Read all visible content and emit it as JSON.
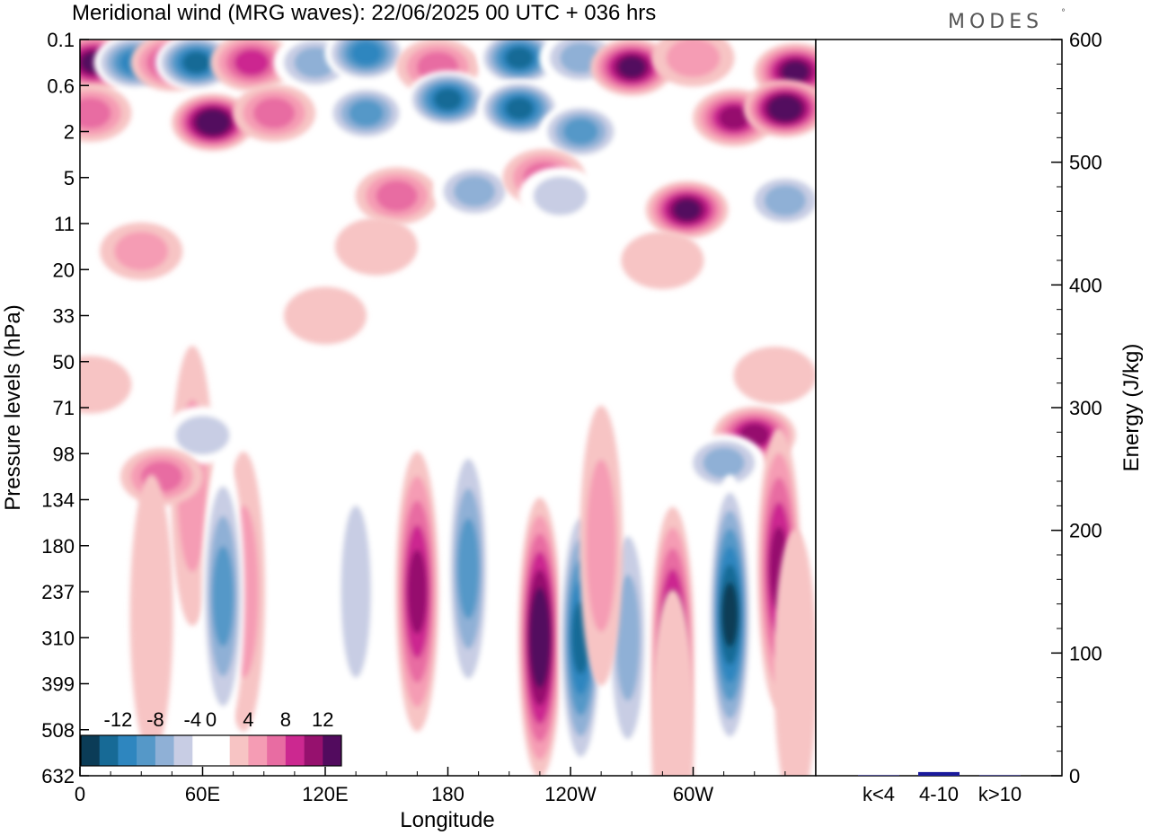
{
  "title": "Meridional wind (MRG waves):  22/06/2025  00 UTC  + 036 hrs",
  "brand": "MODES",
  "brand_mark": "°",
  "colors": {
    "contour_levels": [
      -14,
      -12,
      -10,
      -8,
      -6,
      -4,
      -2,
      2,
      4,
      6,
      8,
      10,
      12,
      14
    ],
    "palette": [
      "#0b3c57",
      "#176a96",
      "#2e86bf",
      "#5598c8",
      "#8fb0d6",
      "#c8cde4",
      "#ffffff",
      "#ffffff",
      "#f7c4c4",
      "#f59cb4",
      "#e86ca2",
      "#cc2890",
      "#96116e",
      "#520b5e"
    ],
    "energy_bar": "#1a1a9c"
  },
  "chart_data": [
    {
      "type": "heatmap",
      "title": "Meridional wind (MRG waves):  22/06/2025  00 UTC  + 036 hrs",
      "xlabel": "Longitude",
      "ylabel": "Pressure levels (hPa)",
      "x_ticks": [
        "0",
        "60E",
        "120E",
        "180",
        "120W",
        "60W"
      ],
      "x_tick_values": [
        0,
        60,
        120,
        180,
        240,
        300
      ],
      "xlim": [
        0,
        360
      ],
      "y_ticks": [
        "0.1",
        "0.6",
        "2",
        "5",
        "11",
        "20",
        "33",
        "50",
        "71",
        "98",
        "134",
        "180",
        "237",
        "310",
        "399",
        "508",
        "632"
      ],
      "colorbar_labels": [
        "-12",
        "-8",
        "-4",
        "0",
        "4",
        "8",
        "12"
      ],
      "colorbar_label_values": [
        -12,
        -8,
        -4,
        0,
        4,
        8,
        12
      ],
      "features": [
        {
          "lon": 7,
          "level": 0.5,
          "value": 12
        },
        {
          "lon": 27,
          "level": 0.5,
          "value": -11
        },
        {
          "lon": 45,
          "level": 0.5,
          "value": 8
        },
        {
          "lon": 57,
          "level": 0.5,
          "value": -12
        },
        {
          "lon": 84,
          "level": 0.5,
          "value": 9
        },
        {
          "lon": 115,
          "level": 0.5,
          "value": -7
        },
        {
          "lon": 140,
          "level": 0.3,
          "value": -10
        },
        {
          "lon": 175,
          "level": 0.6,
          "value": 7
        },
        {
          "lon": 215,
          "level": 0.4,
          "value": -13
        },
        {
          "lon": 245,
          "level": 0.4,
          "value": -6
        },
        {
          "lon": 270,
          "level": 0.6,
          "value": 13
        },
        {
          "lon": 300,
          "level": 0.4,
          "value": 4
        },
        {
          "lon": 350,
          "level": 0.7,
          "value": 13
        },
        {
          "lon": 5,
          "level": 1.6,
          "value": 7
        },
        {
          "lon": 65,
          "level": 1.8,
          "value": 14
        },
        {
          "lon": 95,
          "level": 1.6,
          "value": 6
        },
        {
          "lon": 140,
          "level": 1.6,
          "value": -9
        },
        {
          "lon": 180,
          "level": 1.3,
          "value": -13
        },
        {
          "lon": 215,
          "level": 1.5,
          "value": -13
        },
        {
          "lon": 245,
          "level": 2.0,
          "value": -9
        },
        {
          "lon": 320,
          "level": 1.7,
          "value": 11
        },
        {
          "lon": 345,
          "level": 1.5,
          "value": 14
        },
        {
          "lon": 155,
          "level": 3.4,
          "value": 6
        },
        {
          "lon": 193,
          "level": 3.3,
          "value": -6
        },
        {
          "lon": 227,
          "level": 3.0,
          "value": 7
        },
        {
          "lon": 235,
          "level": 3.4,
          "value": -5
        },
        {
          "lon": 297,
          "level": 3.7,
          "value": 13
        },
        {
          "lon": 345,
          "level": 3.5,
          "value": -6
        },
        {
          "lon": 5,
          "level": 4.3,
          "value": -3
        },
        {
          "lon": 30,
          "level": 4.6,
          "value": 5
        },
        {
          "lon": 145,
          "level": 4.5,
          "value": 2
        },
        {
          "lon": 285,
          "level": 4.8,
          "value": 3
        },
        {
          "lon": 120,
          "level": 6.0,
          "value": 3
        },
        {
          "lon": 60,
          "level": 5.9,
          "value": -3
        },
        {
          "lon": 75,
          "level": 8.1,
          "value": -3
        },
        {
          "lon": 5,
          "level": 7.5,
          "value": 3
        },
        {
          "lon": 265,
          "level": 7.8,
          "value": -3
        },
        {
          "lon": 340,
          "level": 7.3,
          "value": 3
        },
        {
          "lon": 55,
          "level": 9.7,
          "value": 5
        },
        {
          "lon": 60,
          "level": 8.6,
          "value": -5
        },
        {
          "lon": 330,
          "level": 8.6,
          "value": 11
        },
        {
          "lon": 315,
          "level": 9.2,
          "value": -6
        },
        {
          "lon": 40,
          "level": 9.5,
          "value": 7
        },
        {
          "lon": 80,
          "level": 12.0,
          "value": 4
        },
        {
          "lon": 70,
          "level": 12.1,
          "value": -8
        },
        {
          "lon": 135,
          "level": 12.0,
          "value": -5
        },
        {
          "lon": 165,
          "level": 12.0,
          "value": 10
        },
        {
          "lon": 190,
          "level": 11.5,
          "value": -8
        },
        {
          "lon": 225,
          "level": 13.0,
          "value": 14
        },
        {
          "lon": 245,
          "level": 13.0,
          "value": -12
        },
        {
          "lon": 268,
          "level": 13.0,
          "value": -6
        },
        {
          "lon": 290,
          "level": 13.2,
          "value": 12
        },
        {
          "lon": 318,
          "level": 12.5,
          "value": -14
        },
        {
          "lon": 342,
          "level": 11.5,
          "value": 11
        },
        {
          "lon": 350,
          "level": 13.7,
          "value": 3
        },
        {
          "lon": 35,
          "level": 12.5,
          "value": 3
        },
        {
          "lon": 255,
          "level": 11.0,
          "value": 5
        },
        {
          "lon": 290,
          "level": 15.0,
          "value": 3
        }
      ]
    },
    {
      "type": "bar",
      "ylabel": "Energy (J/kg)",
      "categories": [
        "k<4",
        "4-10",
        "k>10"
      ],
      "values": [
        0,
        3,
        0
      ],
      "y_ticks": [
        "0",
        "100",
        "200",
        "300",
        "400",
        "500",
        "600"
      ],
      "y_tick_values": [
        0,
        100,
        200,
        300,
        400,
        500,
        600
      ],
      "ylim": [
        0,
        600
      ]
    }
  ]
}
